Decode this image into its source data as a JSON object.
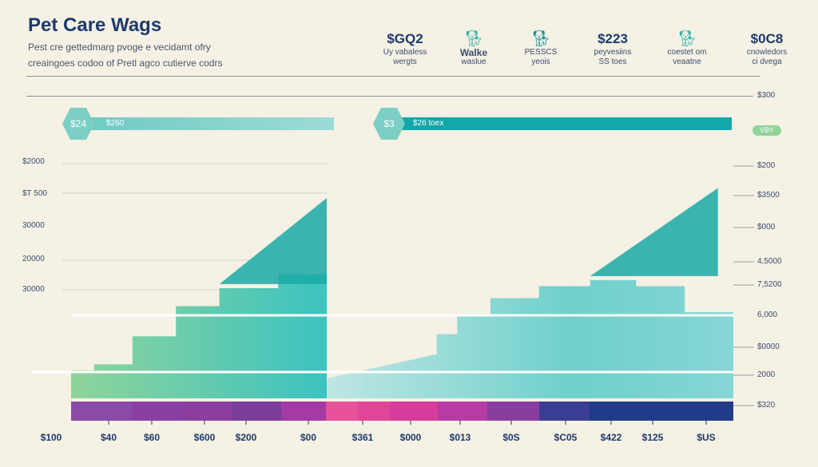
{
  "header": {
    "title": "Pet Care Wags",
    "subtitle_1": "Pest cre gettedmarg pvoge e vecidamt ofry",
    "subtitle_2": "creaingoes codoo of Pretl agco cutierve codrs"
  },
  "stats": [
    {
      "value": "$GQ2",
      "label_1": "Uy vabaless",
      "label_2": "wergts"
    },
    {
      "icon": "dog-icon",
      "value": "Walke",
      "label_2": "waslue"
    },
    {
      "icon": "dog-icon",
      "label_1": "PESSCS",
      "label_2": "yeois"
    },
    {
      "value": "$223",
      "label_1": "peyvesiins",
      "label_2": "SS toes"
    },
    {
      "icon": "dog-icon",
      "label_1": "coestet om",
      "label_2": "veaatne"
    },
    {
      "value": "$0C8",
      "label_1": "cnowledors",
      "label_2": "ci dvega"
    }
  ],
  "bars": {
    "left": {
      "badge": "$24",
      "label": "$260"
    },
    "right": {
      "badge": "$3",
      "label": "$26 toex"
    },
    "top_right_label": "$300",
    "pill": "VBY"
  },
  "colors": {
    "navy": "#1d3a6e",
    "teal": "#12a7a8",
    "light_teal": "#7ccfc5",
    "green": "#8fd49a"
  },
  "chart_data": {
    "type": "area",
    "left_axis": [
      "$2000",
      "$T 500",
      "30000",
      "20000",
      "30000"
    ],
    "right_axis": [
      "$200",
      "$3500",
      "$000",
      "4,5000",
      "7,5200",
      "6,000",
      "$0000",
      "2000",
      "$320"
    ],
    "x_ticks": [
      "$100",
      "$40",
      "$60",
      "$600",
      "$200",
      "$00",
      "$361",
      "$000",
      "$013",
      "$0S",
      "$C05",
      "$422",
      "$125",
      "$US"
    ],
    "series": [
      {
        "name": "left",
        "steps": [
          [
            0,
            14
          ],
          [
            9,
            17
          ],
          [
            24,
            31
          ],
          [
            41,
            46
          ],
          [
            58,
            55
          ],
          [
            81,
            62
          ]
        ],
        "peak": 100,
        "end": 100
      },
      {
        "name": "right",
        "steps": [
          [
            100,
            10
          ],
          [
            143,
            32
          ],
          [
            151,
            42
          ],
          [
            164,
            50
          ],
          [
            183,
            56
          ],
          [
            203,
            59
          ],
          [
            221,
            56
          ],
          [
            240,
            43
          ]
        ],
        "peak": 253,
        "end": 259
      }
    ],
    "band_colors": [
      "#8a4aa8",
      "#8b3fa5",
      "#8c3fa0",
      "#7a3d9c",
      "#a43aa5",
      "#e8509a",
      "#e04598",
      "#d63d9c",
      "#b83ba5",
      "#8a3da0",
      "#3b3d95",
      "#1f3b8a"
    ]
  }
}
